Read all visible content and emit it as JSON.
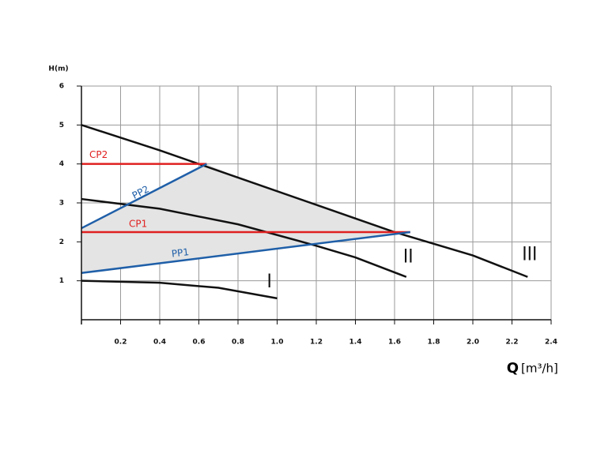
{
  "chart_data": {
    "type": "line",
    "y_label": "H(m)",
    "x_label": "Q",
    "x_unit": "[m³/h]",
    "xlim": [
      0,
      2.4
    ],
    "xticks": [
      0.2,
      0.4,
      0.6,
      0.8,
      {
        "value": 1,
        "label": "1.0"
      },
      1.2,
      1.4,
      1.6,
      1.8,
      {
        "value": 2,
        "label": "2.0"
      },
      2.2,
      2.4
    ],
    "ylim": [
      0,
      6
    ],
    "yticks": [
      1,
      2,
      3,
      4,
      5,
      6
    ],
    "grid": true,
    "series": [
      {
        "name": "III",
        "color": "#111111",
        "x": [
          0,
          0.4,
          0.8,
          1.2,
          1.6,
          2.0,
          2.28
        ],
        "values": [
          5,
          4.35,
          3.65,
          2.95,
          2.25,
          1.65,
          1.1
        ]
      },
      {
        "name": "II",
        "color": "#111111",
        "x": [
          0,
          0.4,
          0.8,
          1.2,
          1.4,
          1.66
        ],
        "values": [
          3.1,
          2.85,
          2.45,
          1.9,
          1.6,
          1.1
        ]
      },
      {
        "name": "I",
        "color": "#111111",
        "x": [
          0,
          0.4,
          0.7,
          1.0
        ],
        "values": [
          1.0,
          0.95,
          0.82,
          0.55
        ]
      },
      {
        "name": "CP2",
        "color": "#e02020",
        "x": [
          0,
          0.64
        ],
        "values": [
          4,
          4
        ]
      },
      {
        "name": "CP1",
        "color": "#e02020",
        "x": [
          0,
          1.68
        ],
        "values": [
          2.25,
          2.25
        ]
      },
      {
        "name": "PP2",
        "color": "#1f5fa8",
        "x": [
          0,
          0.64
        ],
        "values": [
          2.35,
          4
        ]
      },
      {
        "name": "PP1",
        "color": "#1f5fa8",
        "x": [
          0,
          1.68
        ],
        "values": [
          1.2,
          2.25
        ]
      }
    ]
  }
}
